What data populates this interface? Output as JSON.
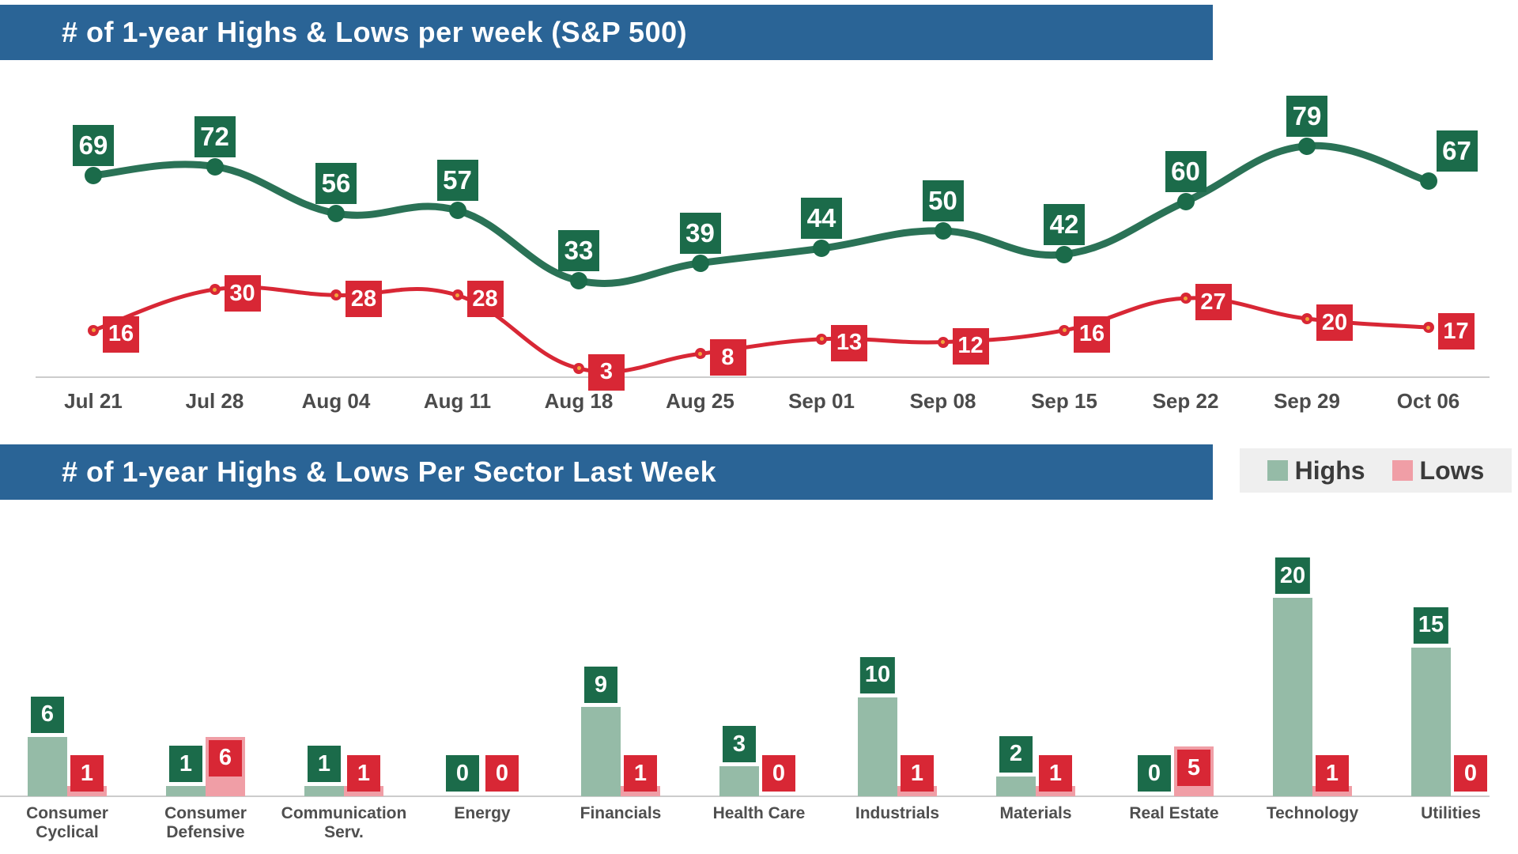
{
  "colors": {
    "banner_blue": "#2a6496",
    "green_label": "#1b6b4a",
    "green_line": "#2a7256",
    "red": "#d82735",
    "marker_center_orange": "#f2a43c",
    "sage_bar": "#95bba7",
    "pink_bar": "#f09ea6",
    "axis_line": "#cccccc",
    "tick_text": "#4b4b4b",
    "legend_bg": "#efefef",
    "legend_text": "#3b3b3b"
  },
  "chart_data": [
    {
      "type": "line",
      "title": "# of 1-year Highs & Lows per week (S&P 500)",
      "x": [
        "Jul 21",
        "Jul 28",
        "Aug 04",
        "Aug 11",
        "Aug 18",
        "Aug 25",
        "Sep 01",
        "Sep 08",
        "Sep 15",
        "Sep 22",
        "Sep 29",
        "Oct 06"
      ],
      "series": [
        {
          "name": "Highs",
          "color": "#1b6b4a",
          "line_color": "#2a7256",
          "values": [
            69,
            72,
            56,
            57,
            33,
            39,
            44,
            50,
            42,
            60,
            79,
            67
          ]
        },
        {
          "name": "Lows",
          "color": "#d82735",
          "line_color": "#d82735",
          "values": [
            16,
            30,
            28,
            28,
            3,
            8,
            13,
            12,
            16,
            27,
            20,
            17
          ]
        }
      ],
      "ylim": [
        0,
        95
      ],
      "grid": false,
      "data_labels": true,
      "legend_position": "none"
    },
    {
      "type": "bar",
      "title": "# of 1-year Highs & Lows Per Sector Last Week",
      "categories": [
        "Consumer Cyclical",
        "Consumer Defensive",
        "Communication Serv.",
        "Energy",
        "Financials",
        "Health Care",
        "Industrials",
        "Materials",
        "Real Estate",
        "Technology",
        "Utilities"
      ],
      "series": [
        {
          "name": "Highs",
          "color": "#95bba7",
          "label_color": "#1b6b4a",
          "values": [
            6,
            1,
            1,
            0,
            9,
            3,
            10,
            2,
            0,
            20,
            15
          ]
        },
        {
          "name": "Lows",
          "color": "#f09ea6",
          "label_color": "#d82735",
          "values": [
            1,
            6,
            1,
            0,
            1,
            0,
            1,
            1,
            5,
            1,
            0
          ]
        }
      ],
      "ylim": [
        0,
        22
      ],
      "grid": false,
      "data_labels": true,
      "legend_position": "top-right"
    }
  ]
}
